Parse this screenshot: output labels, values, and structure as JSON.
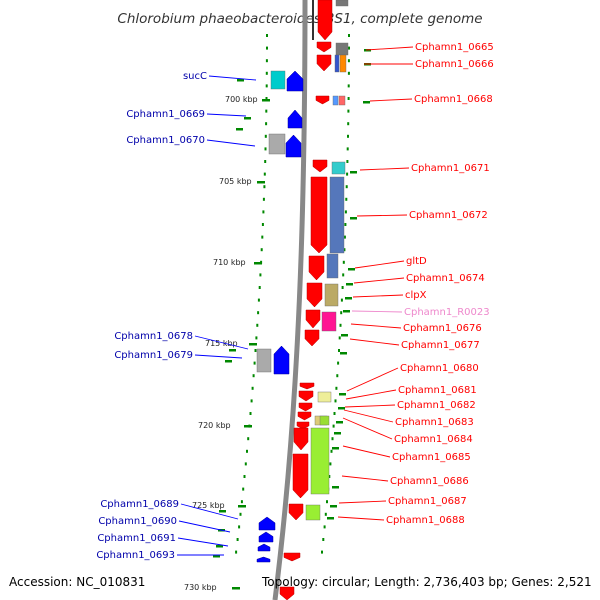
{
  "title": "Chlorobium phaeobacteroides BS1, complete genome",
  "footer": {
    "accession": "Accession: NC_010831",
    "topology": "Topology: circular; Length: 2,736,403 bp; Genes: 2,521"
  },
  "colors": {
    "forward_strand": "#ff0000",
    "reverse_strand": "#0000ff",
    "rna_label": "#ee88cc",
    "backbone": "#888888",
    "tick": "#008800"
  },
  "kbp_ticks": [
    "700 kbp",
    "705 kbp",
    "710 kbp",
    "715 kbp",
    "720 kbp",
    "725 kbp",
    "730 kbp"
  ],
  "labels_right": [
    {
      "text": "Cphamn1_0665",
      "type": "cds"
    },
    {
      "text": "Cphamn1_0666",
      "type": "cds"
    },
    {
      "text": "Cphamn1_0668",
      "type": "cds"
    },
    {
      "text": "Cphamn1_0671",
      "type": "cds"
    },
    {
      "text": "Cphamn1_0672",
      "type": "cds"
    },
    {
      "text": "gltD",
      "type": "cds"
    },
    {
      "text": "Cphamn1_0674",
      "type": "cds"
    },
    {
      "text": "clpX",
      "type": "cds"
    },
    {
      "text": "Cphamn1_R0023",
      "type": "rna"
    },
    {
      "text": "Cphamn1_0676",
      "type": "cds"
    },
    {
      "text": "Cphamn1_0677",
      "type": "cds"
    },
    {
      "text": "Cphamn1_0680",
      "type": "cds"
    },
    {
      "text": "Cphamn1_0681",
      "type": "cds"
    },
    {
      "text": "Cphamn1_0682",
      "type": "cds"
    },
    {
      "text": "Cphamn1_0683",
      "type": "cds"
    },
    {
      "text": "Cphamn1_0684",
      "type": "cds"
    },
    {
      "text": "Cphamn1_0685",
      "type": "cds"
    },
    {
      "text": "Cphamn1_0686",
      "type": "cds"
    },
    {
      "text": "Cphamn1_0687",
      "type": "cds"
    },
    {
      "text": "Cphamn1_0688",
      "type": "cds"
    }
  ],
  "labels_left": [
    {
      "text": "sucC"
    },
    {
      "text": "Cphamn1_0669"
    },
    {
      "text": "Cphamn1_0670"
    },
    {
      "text": "Cphamn1_0678"
    },
    {
      "text": "Cphamn1_0679"
    },
    {
      "text": "Cphamn1_0689"
    },
    {
      "text": "Cphamn1_0690"
    },
    {
      "text": "Cphamn1_0691"
    },
    {
      "text": "Cphamn1_0693"
    }
  ]
}
